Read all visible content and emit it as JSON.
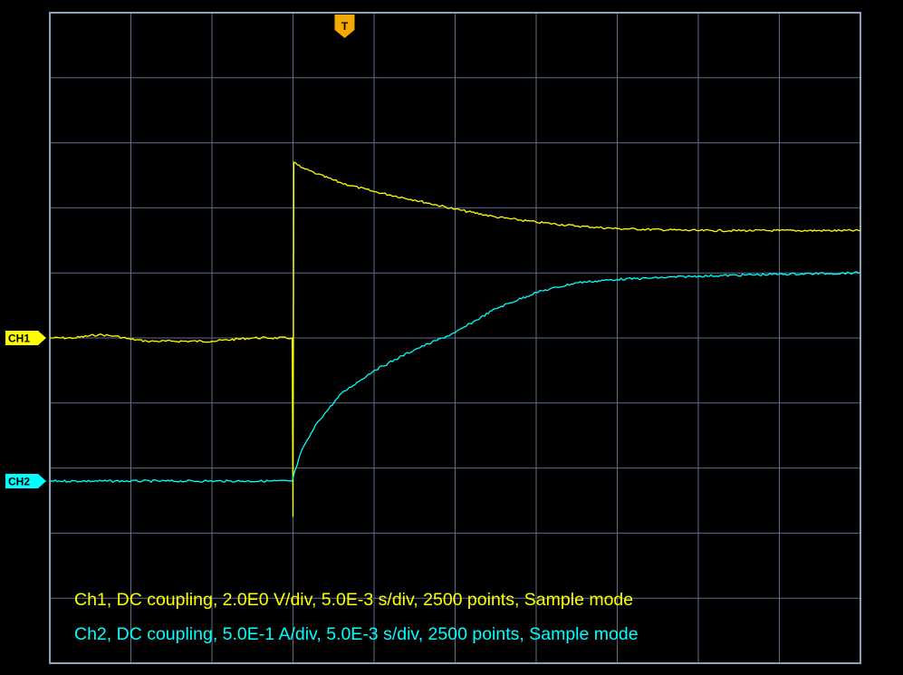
{
  "chart_data": {
    "type": "line",
    "title": "",
    "xlabel": "",
    "ylabel": "",
    "grid": true,
    "divisions": {
      "horizontal": 10,
      "vertical": 10
    },
    "xlim": [
      0,
      10
    ],
    "ylim": [
      -5,
      5
    ],
    "x_units": "div",
    "y_units": "div",
    "trigger": {
      "label": "T",
      "x": 3
    },
    "channels": [
      {
        "label": "CH1",
        "ground_level": 0,
        "color": "#ffff00"
      },
      {
        "label": "CH2",
        "ground_level": -2.2,
        "color": "#00ffff"
      }
    ],
    "series": [
      {
        "name": "CH1",
        "color": "#ffff00",
        "x": [
          0,
          0.3,
          0.6,
          0.8,
          1,
          1.2,
          1.5,
          2,
          2.5,
          2.99,
          3,
          3.01,
          3.1,
          3.3,
          3.6,
          4,
          4.5,
          5,
          5.5,
          6,
          6.5,
          7,
          8,
          9,
          10
        ],
        "y": [
          0,
          0,
          0.05,
          0.03,
          -0.02,
          -0.05,
          -0.05,
          -0.05,
          0,
          0,
          -2.75,
          2.7,
          2.62,
          2.52,
          2.38,
          2.25,
          2.12,
          1.98,
          1.86,
          1.78,
          1.72,
          1.68,
          1.65,
          1.65,
          1.65
        ]
      },
      {
        "name": "CH2",
        "color": "#00ffff",
        "x": [
          0,
          1,
          2,
          2.99,
          3.0,
          3.1,
          3.3,
          3.6,
          4,
          4.5,
          5,
          5.5,
          6,
          6.5,
          7,
          8,
          9,
          10
        ],
        "y": [
          -2.2,
          -2.2,
          -2.2,
          -2.2,
          -2.15,
          -1.75,
          -1.3,
          -0.85,
          -0.5,
          -0.18,
          0.08,
          0.45,
          0.7,
          0.85,
          0.9,
          0.95,
          0.98,
          1.0
        ]
      }
    ]
  },
  "readout": {
    "ch1": "Ch1, DC coupling, 2.0E0 V/div, 5.0E-3 s/div, 2500 points, Sample mode",
    "ch2": "Ch2, DC coupling, 5.0E-1 A/div, 5.0E-3 s/div, 2500 points, Sample mode"
  }
}
